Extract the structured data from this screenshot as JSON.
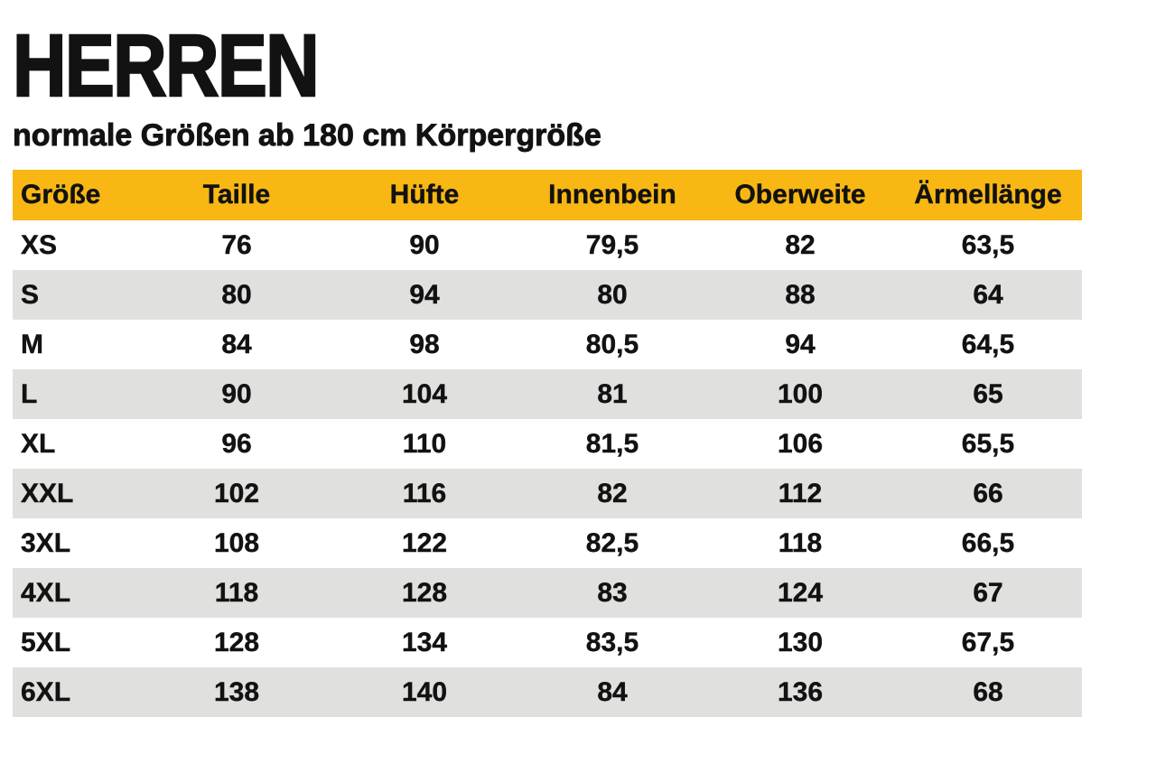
{
  "page": {
    "background": "#ffffff",
    "text_color": "#121212"
  },
  "header": {
    "title": "HERREN",
    "subtitle": "normale Größen ab 180 cm Körpergröße"
  },
  "table": {
    "header_bg": "#F8B713",
    "alt_row_bg": "#E0E0DE",
    "columns": [
      "Größe",
      "Taille",
      "Hüfte",
      "Innenbein",
      "Oberweite",
      "Ärmellänge"
    ],
    "rows": [
      {
        "size": "XS",
        "values": [
          "76",
          "90",
          "79,5",
          "82",
          "63,5"
        ]
      },
      {
        "size": "S",
        "values": [
          "80",
          "94",
          "80",
          "88",
          "64"
        ]
      },
      {
        "size": "M",
        "values": [
          "84",
          "98",
          "80,5",
          "94",
          "64,5"
        ]
      },
      {
        "size": "L",
        "values": [
          "90",
          "104",
          "81",
          "100",
          "65"
        ]
      },
      {
        "size": "XL",
        "values": [
          "96",
          "110",
          "81,5",
          "106",
          "65,5"
        ]
      },
      {
        "size": "XXL",
        "values": [
          "102",
          "116",
          "82",
          "112",
          "66"
        ]
      },
      {
        "size": "3XL",
        "values": [
          "108",
          "122",
          "82,5",
          "118",
          "66,5"
        ]
      },
      {
        "size": "4XL",
        "values": [
          "118",
          "128",
          "83",
          "124",
          "67"
        ]
      },
      {
        "size": "5XL",
        "values": [
          "128",
          "134",
          "83,5",
          "130",
          "67,5"
        ]
      },
      {
        "size": "6XL",
        "values": [
          "138",
          "140",
          "84",
          "136",
          "68"
        ]
      }
    ]
  }
}
